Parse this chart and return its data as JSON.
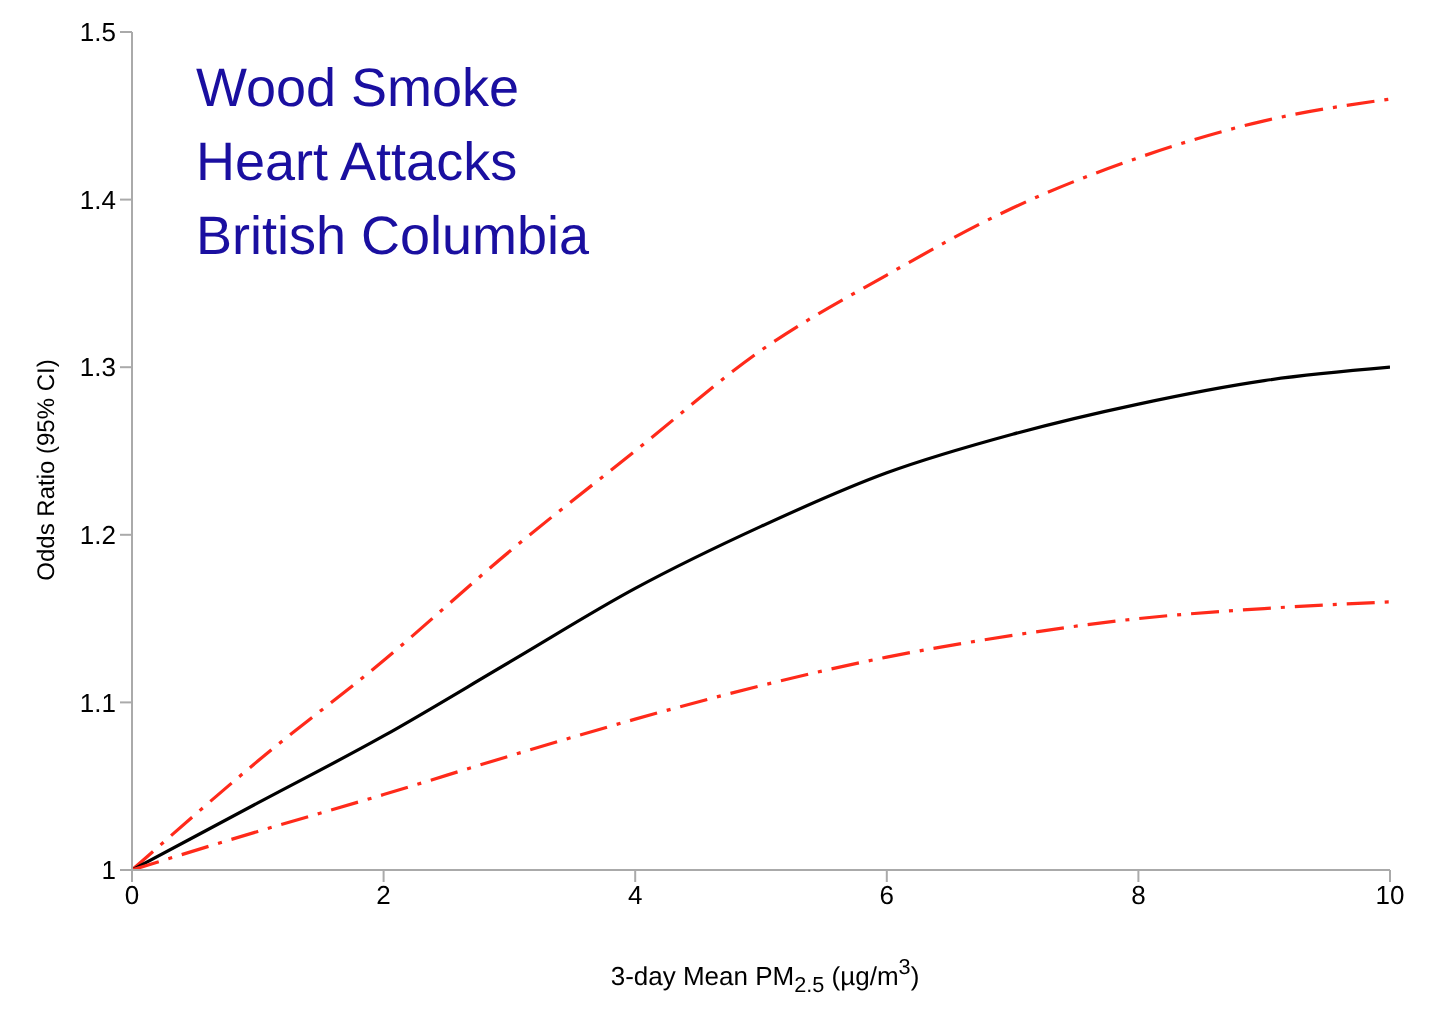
{
  "chart_data": {
    "type": "line",
    "xlabel": "3-day Mean PM$_{2.5}$ (µg/m$^{3}$)",
    "ylabel": "Odds Ratio (95% CI)",
    "annotations": [
      "Wood Smoke",
      "Heart Attacks",
      "British Columbia"
    ],
    "x": [
      0,
      1,
      2,
      3,
      4,
      5,
      6,
      7,
      8,
      9,
      10
    ],
    "series": [
      {
        "color": "#ff2a1a",
        "line_style": "dashed",
        "values": [
          1,
          1.065,
          1.125,
          1.19,
          1.25,
          1.31,
          1.355,
          1.395,
          1.425,
          1.447,
          1.46
        ]
      },
      {
        "color": "#000000",
        "line_style": "solid",
        "values": [
          1,
          1.04,
          1.08,
          1.124,
          1.168,
          1.205,
          1.237,
          1.26,
          1.278,
          1.292,
          1.3
        ]
      },
      {
        "color": "#ff2a1a",
        "line_style": "dashed",
        "values": [
          1,
          1.023,
          1.045,
          1.068,
          1.09,
          1.11,
          1.127,
          1.14,
          1.15,
          1.156,
          1.16
        ]
      }
    ],
    "xlim": [
      0,
      10
    ],
    "xticks": [
      0,
      2,
      4,
      6,
      8,
      10
    ],
    "ylim": [
      1,
      1.5
    ],
    "yticks": [
      1,
      1.1,
      1.2,
      1.3,
      1.4,
      1.5
    ],
    "grid": false,
    "legend": false,
    "marker": "none"
  }
}
